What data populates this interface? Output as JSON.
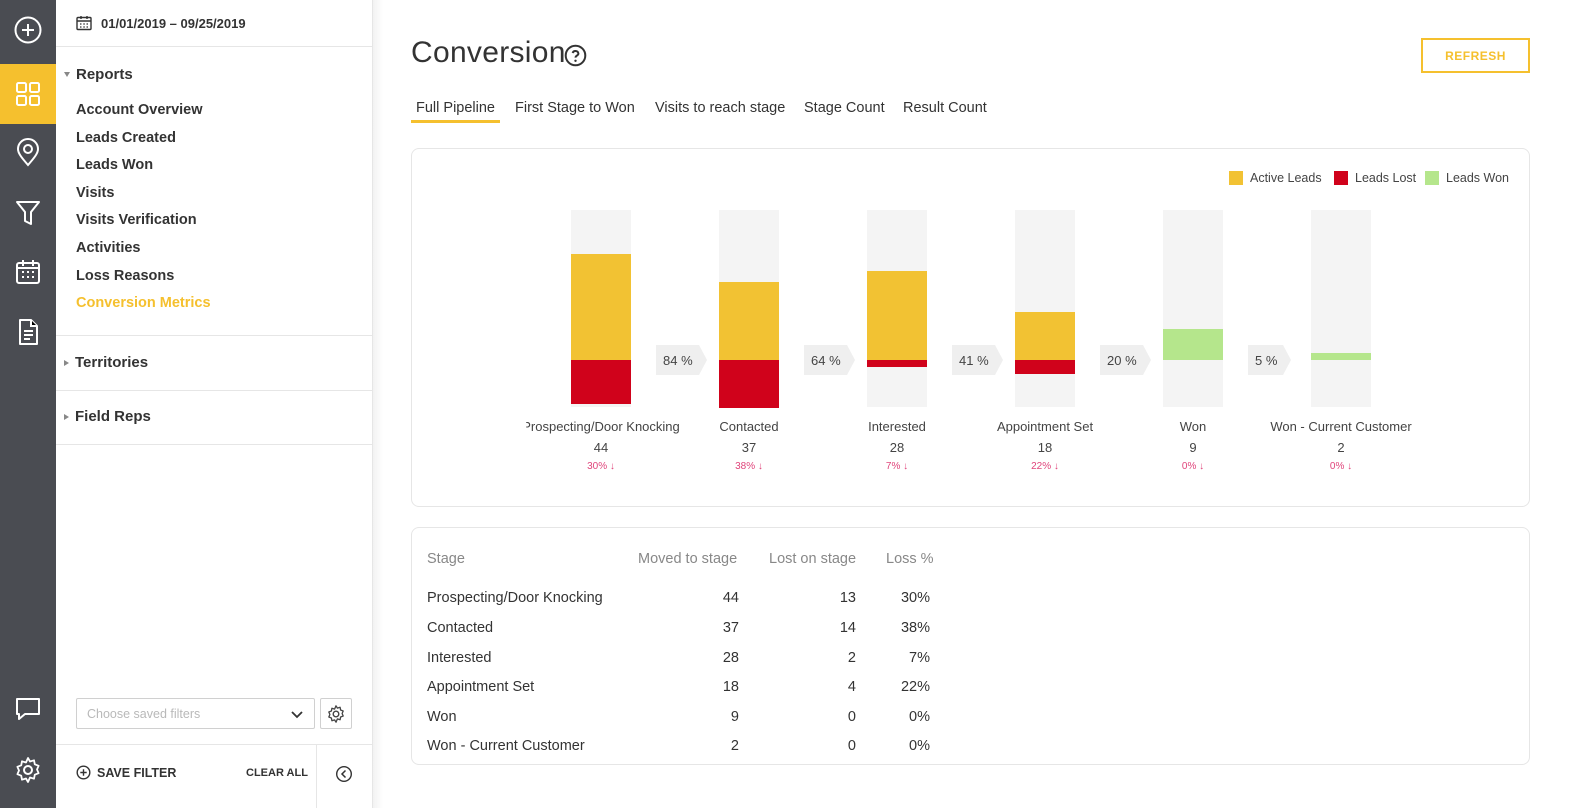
{
  "sidebar": {
    "date_range": "01/01/2019 – 09/25/2019",
    "reports": {
      "title": "Reports",
      "items": [
        {
          "label": "Account Overview"
        },
        {
          "label": "Leads Created"
        },
        {
          "label": "Leads Won"
        },
        {
          "label": "Visits"
        },
        {
          "label": "Visits Verification"
        },
        {
          "label": "Activities"
        },
        {
          "label": "Loss Reasons"
        },
        {
          "label": "Conversion Metrics",
          "active": true
        }
      ]
    },
    "territories": {
      "title": "Territories"
    },
    "field_reps": {
      "title": "Field Reps"
    },
    "filter_placeholder": "Choose saved filters",
    "save_filter": "SAVE FILTER",
    "clear_all": "CLEAR ALL"
  },
  "header": {
    "title": "Conversion",
    "refresh": "REFRESH"
  },
  "tabs": [
    {
      "label": "Full Pipeline",
      "active": true
    },
    {
      "label": "First Stage to Won"
    },
    {
      "label": "Visits to reach stage"
    },
    {
      "label": "Stage Count"
    },
    {
      "label": "Result Count"
    }
  ],
  "chart_data": {
    "type": "bar",
    "legend": [
      {
        "name": "Active Leads",
        "color": "#f2c233"
      },
      {
        "name": "Leads Lost",
        "color": "#d0021b"
      },
      {
        "name": "Leads Won",
        "color": "#b5e68c"
      }
    ],
    "legend_placement": "top-right",
    "categories": [
      "Prospecting/Door Knocking",
      "Contacted",
      "Interested",
      "Appointment Set",
      "Won",
      "Won - Current Customer"
    ],
    "counts": [
      "44",
      "37",
      "28",
      "18",
      "9",
      "2"
    ],
    "series": [
      {
        "name": "Active Leads",
        "values": [
          31,
          23,
          26,
          14,
          0,
          0
        ]
      },
      {
        "name": "Leads Lost",
        "values": [
          13,
          14,
          2,
          4,
          0,
          0
        ]
      },
      {
        "name": "Leads Won",
        "values": [
          0,
          0,
          0,
          0,
          9,
          2
        ]
      }
    ],
    "max": 44,
    "loss_labels": [
      "30% ↓",
      "38% ↓",
      "7% ↓",
      "22% ↓",
      "0% ↓",
      "0% ↓"
    ],
    "conversions": [
      "84 %",
      "64 %",
      "41 %",
      "20 %",
      "5 %"
    ]
  },
  "table": {
    "headers": [
      "Stage",
      "Moved to stage",
      "Lost on stage",
      "Loss %"
    ],
    "rows": [
      {
        "stage": "Prospecting/Door Knocking",
        "moved": "44",
        "lost": "13",
        "loss": "30%"
      },
      {
        "stage": "Contacted",
        "moved": "37",
        "lost": "14",
        "loss": "38%"
      },
      {
        "stage": "Interested",
        "moved": "28",
        "lost": "2",
        "loss": "7%"
      },
      {
        "stage": "Appointment Set",
        "moved": "18",
        "lost": "4",
        "loss": "22%"
      },
      {
        "stage": "Won",
        "moved": "9",
        "lost": "0",
        "loss": "0%"
      },
      {
        "stage": "Won - Current Customer",
        "moved": "2",
        "lost": "0",
        "loss": "0%"
      }
    ]
  },
  "icons": {
    "rail": [
      "add-circle-icon",
      "dashboard-grid-icon",
      "map-pin-icon",
      "funnel-icon",
      "calendar-icon",
      "document-icon",
      "chat-icon",
      "gear-icon"
    ]
  }
}
